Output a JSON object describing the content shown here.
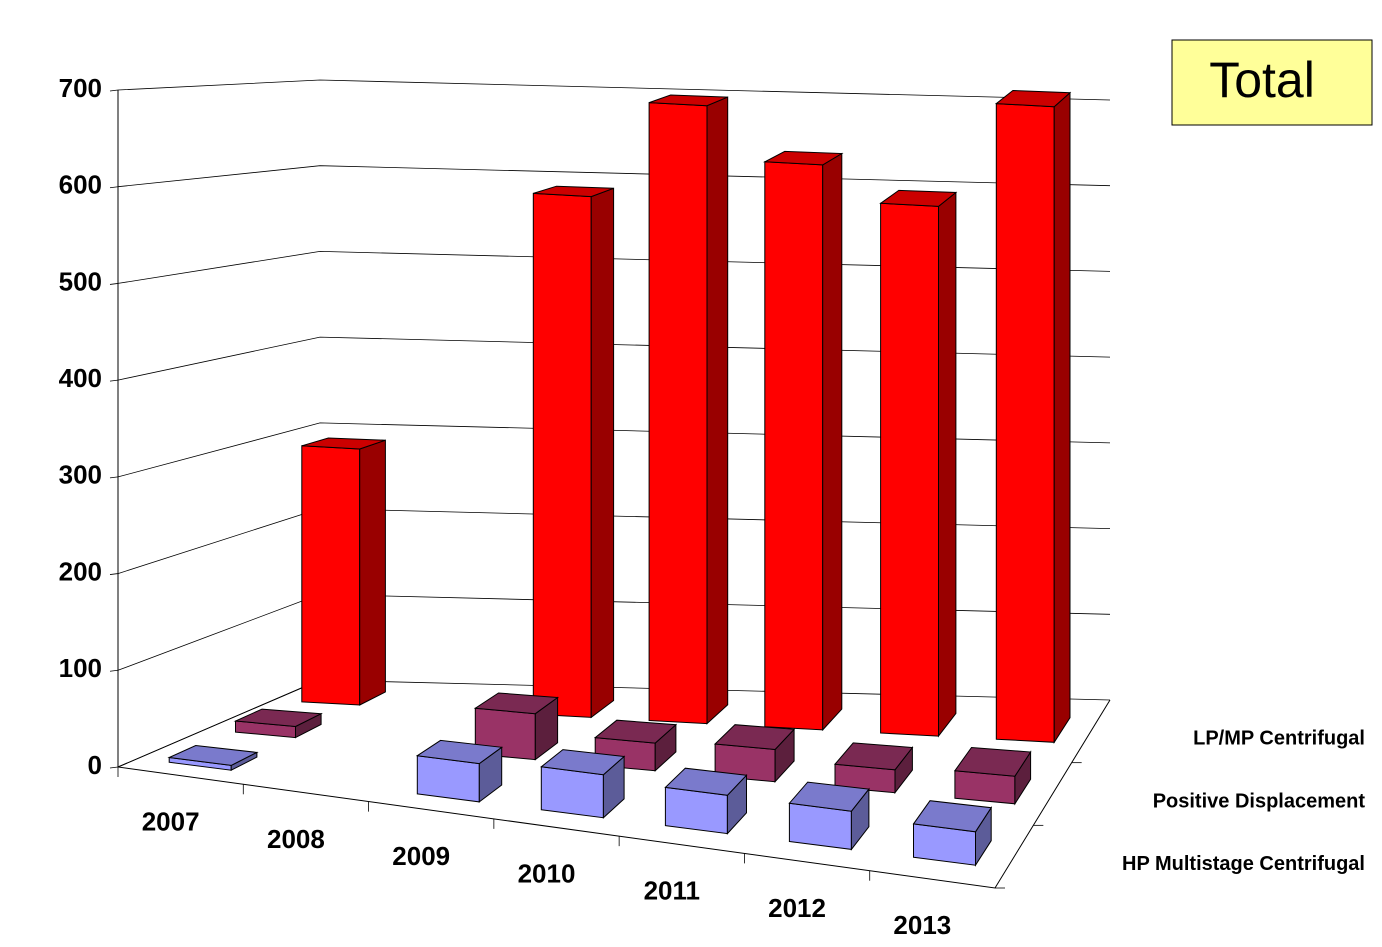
{
  "chart_data": {
    "type": "bar3d",
    "annotation": "Total",
    "categories": [
      "2007",
      "2008",
      "2009",
      "2010",
      "2011",
      "2012",
      "2013"
    ],
    "series": [
      {
        "name": "HP Multistage Centrifugal",
        "color": "#9999ff",
        "values": [
          5,
          null,
          40,
          45,
          40,
          40,
          35
        ]
      },
      {
        "name": "Positive Displacement",
        "color": "#993366",
        "values": [
          12,
          null,
          50,
          30,
          35,
          25,
          30
        ]
      },
      {
        "name": "LP/MP Centrifugal",
        "color": "#ff0000",
        "values": [
          290,
          null,
          590,
          700,
          640,
          600,
          720
        ]
      }
    ],
    "ylim": [
      0,
      700
    ],
    "yticks": [
      0,
      100,
      200,
      300,
      400,
      500,
      600,
      700
    ],
    "grid": true
  }
}
